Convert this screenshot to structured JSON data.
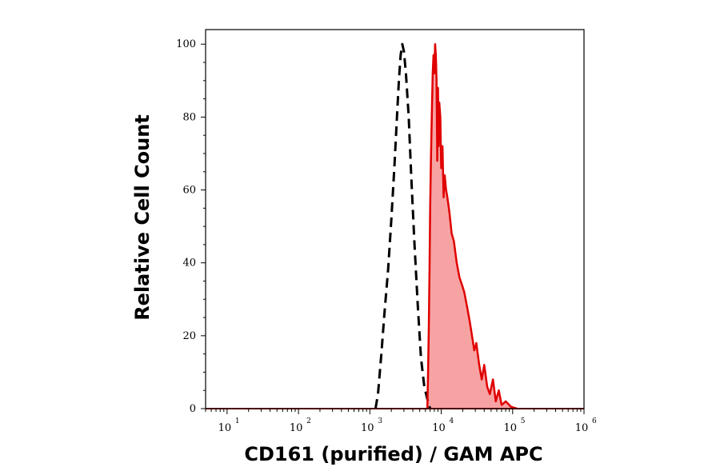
{
  "chart_data": {
    "type": "area",
    "xlabel": "CD161 (purified) / GAM APC",
    "ylabel": "Relative Cell Count",
    "x_scale": "log",
    "xlim": [
      5,
      1000000
    ],
    "ylim": [
      0,
      104
    ],
    "x_ticks": [
      {
        "base": "10",
        "exp": "1",
        "value": 10
      },
      {
        "base": "10",
        "exp": "2",
        "value": 100
      },
      {
        "base": "10",
        "exp": "3",
        "value": 1000
      },
      {
        "base": "10",
        "exp": "4",
        "value": 10000
      },
      {
        "base": "10",
        "exp": "5",
        "value": 100000
      },
      {
        "base": "10",
        "exp": "6",
        "value": 1000000
      }
    ],
    "y_ticks": [
      "0",
      "20",
      "40",
      "60",
      "80",
      "100"
    ],
    "grid": false,
    "series": [
      {
        "style": "dashed",
        "color": "#000000",
        "fill": "none",
        "points": [
          [
            1200,
            0
          ],
          [
            1300,
            4
          ],
          [
            1450,
            15
          ],
          [
            1600,
            26
          ],
          [
            1800,
            38
          ],
          [
            2000,
            52
          ],
          [
            2200,
            66
          ],
          [
            2400,
            80
          ],
          [
            2550,
            90
          ],
          [
            2700,
            97
          ],
          [
            2850,
            100
          ],
          [
            3000,
            98
          ],
          [
            3200,
            92
          ],
          [
            3500,
            80
          ],
          [
            3800,
            64
          ],
          [
            4200,
            46
          ],
          [
            4700,
            28
          ],
          [
            5200,
            14
          ],
          [
            5800,
            6
          ],
          [
            6500,
            2
          ],
          [
            7000,
            0
          ]
        ]
      },
      {
        "style": "solid",
        "color": "#e00000",
        "fill": "#f7a3a3",
        "points": [
          [
            6400,
            0
          ],
          [
            6550,
            10
          ],
          [
            6700,
            22
          ],
          [
            6850,
            38
          ],
          [
            7000,
            55
          ],
          [
            7200,
            70
          ],
          [
            7400,
            82
          ],
          [
            7600,
            92
          ],
          [
            7800,
            97
          ],
          [
            8000,
            92
          ],
          [
            8200,
            100
          ],
          [
            8400,
            97
          ],
          [
            8600,
            90
          ],
          [
            8800,
            68
          ],
          [
            9000,
            88
          ],
          [
            9200,
            72
          ],
          [
            9400,
            84
          ],
          [
            9700,
            80
          ],
          [
            10000,
            66
          ],
          [
            10400,
            72
          ],
          [
            10800,
            58
          ],
          [
            11200,
            64
          ],
          [
            11700,
            60
          ],
          [
            12200,
            58
          ],
          [
            13000,
            54
          ],
          [
            14000,
            48
          ],
          [
            15000,
            46
          ],
          [
            16500,
            40
          ],
          [
            18000,
            36
          ],
          [
            19500,
            34
          ],
          [
            21000,
            32
          ],
          [
            23000,
            28
          ],
          [
            25000,
            24
          ],
          [
            27000,
            20
          ],
          [
            29000,
            16
          ],
          [
            31000,
            18
          ],
          [
            34000,
            12
          ],
          [
            37000,
            8
          ],
          [
            40000,
            12
          ],
          [
            44000,
            6
          ],
          [
            48000,
            4
          ],
          [
            53000,
            8
          ],
          [
            58000,
            2
          ],
          [
            64000,
            5
          ],
          [
            70000,
            1
          ],
          [
            80000,
            2
          ],
          [
            95000,
            0.5
          ],
          [
            115000,
            0
          ]
        ]
      }
    ]
  }
}
